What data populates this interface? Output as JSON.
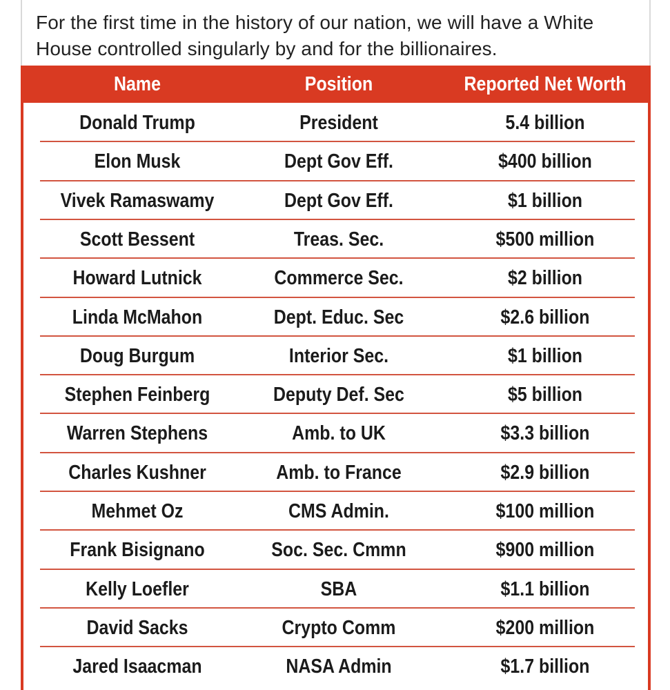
{
  "caption": "For the first time in the history of our nation, we will have a White House controlled singularly by and for the billionaires.",
  "table": {
    "headers": [
      "Name",
      "Position",
      "Reported Net Worth"
    ],
    "rows": [
      [
        "Donald Trump",
        "President",
        "5.4 billion"
      ],
      [
        "Elon Musk",
        "Dept Gov Eff.",
        "$400 billion"
      ],
      [
        "Vivek Ramaswamy",
        "Dept Gov Eff.",
        "$1 billion"
      ],
      [
        "Scott Bessent",
        "Treas. Sec.",
        "$500 million"
      ],
      [
        "Howard Lutnick",
        "Commerce Sec.",
        "$2 billion"
      ],
      [
        "Linda McMahon",
        "Dept. Educ. Sec",
        "$2.6 billion"
      ],
      [
        "Doug Burgum",
        "Interior Sec.",
        "$1 billion"
      ],
      [
        "Stephen Feinberg",
        "Deputy Def. Sec",
        "$5 billion"
      ],
      [
        "Warren Stephens",
        "Amb. to UK",
        "$3.3 billion"
      ],
      [
        "Charles Kushner",
        "Amb. to France",
        "$2.9 billion"
      ],
      [
        "Mehmet Oz",
        "CMS Admin.",
        "$100 million"
      ],
      [
        "Frank Bisignano",
        "Soc. Sec. Cmmn",
        "$900 million"
      ],
      [
        "Kelly Loefler",
        "SBA",
        "$1.1 billion"
      ],
      [
        "David Sacks",
        "Crypto Comm",
        "$200 million"
      ],
      [
        "Jared Isaacman",
        "NASA Admin",
        "$1.7 billion"
      ]
    ]
  },
  "colors": {
    "accent": "#d93a22",
    "rule": "#d2543f",
    "text": "#1b1b1b"
  }
}
